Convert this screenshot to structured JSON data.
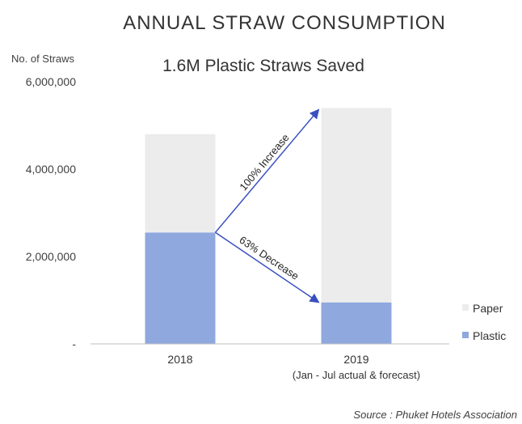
{
  "chart_data": {
    "type": "bar",
    "stacked": true,
    "title": "ANNUAL STRAW CONSUMPTION",
    "subtitle": "1.6M Plastic Straws Saved",
    "ylabel": "No. of Straws",
    "ylim": [
      0,
      6000000
    ],
    "yticks": [
      0,
      2000000,
      4000000,
      6000000
    ],
    "ytick_labels": [
      "-",
      "2,000,000",
      "4,000,000",
      "6,000,000"
    ],
    "categories": [
      "2018",
      "2019"
    ],
    "category_sublabels": [
      "",
      "(Jan - Jul actual & forecast)"
    ],
    "series": [
      {
        "name": "Plastic",
        "color": "#8fa8de",
        "values": [
          2550000,
          950000
        ]
      },
      {
        "name": "Paper",
        "color": "#ececec",
        "values": [
          2250000,
          4450000
        ]
      }
    ],
    "legend_position": "right",
    "legend_order": [
      "Paper",
      "Plastic"
    ],
    "annotations": [
      {
        "text": "100% Increase",
        "from": "2018 Plastic top",
        "to": "2019 total top"
      },
      {
        "text": "63% Decrease",
        "from": "2018 Plastic top",
        "to": "2019 Plastic top"
      }
    ],
    "annotation_color": "#3a4fbf",
    "grid": false
  },
  "source": "Source : Phuket Hotels Association"
}
